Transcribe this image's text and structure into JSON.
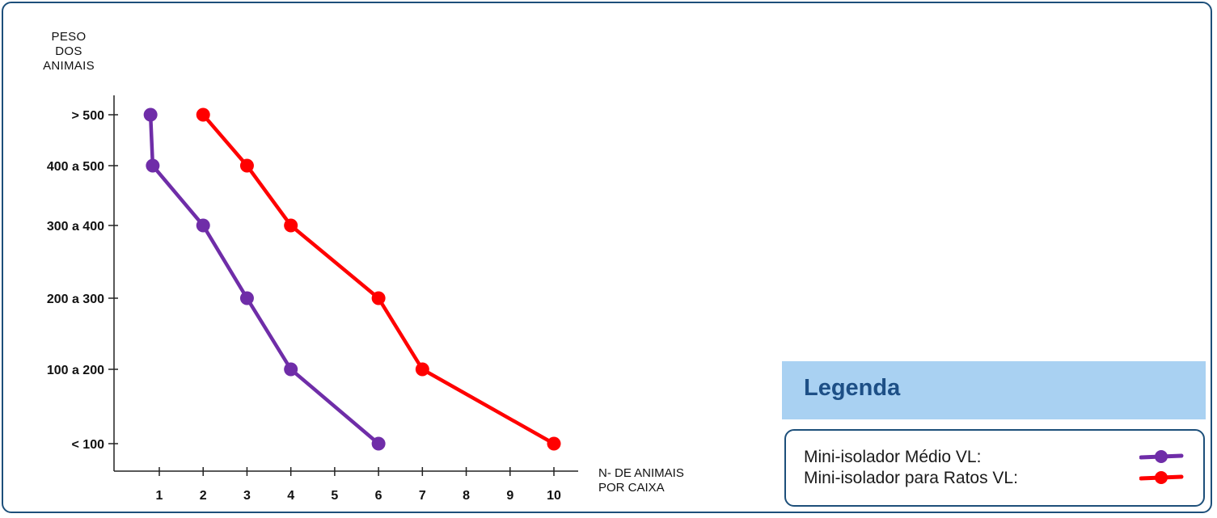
{
  "colors": {
    "frame": "#1d4f7a",
    "legend_header_bg": "#a9d1f2",
    "legend_title": "#1d4f86",
    "axis": "#222222"
  },
  "legend": {
    "title": "Legenda",
    "items": [
      {
        "label": "Mini-isolador Médio VL:",
        "color": "#6f2da8"
      },
      {
        "label": "Mini-isolador para Ratos VL:",
        "color": "#ff0000"
      }
    ]
  },
  "chart_data": {
    "type": "line",
    "ylabel_lines": [
      "PESO",
      "DOS",
      "ANIMAIS"
    ],
    "xlabel_lines": [
      "N- DE ANIMAIS",
      "POR CAIXA"
    ],
    "x_ticks": [
      1,
      2,
      3,
      4,
      5,
      6,
      7,
      8,
      9,
      10
    ],
    "y_ticks": [
      "< 100",
      "100 a 200",
      "200 a 300",
      "300 a 400",
      "400 a 500",
      "> 500"
    ],
    "y_tick_values": [
      0,
      1,
      2,
      3,
      4,
      5
    ],
    "xlim": [
      -0.3,
      11
    ],
    "ylim": [
      -0.3,
      5.6
    ],
    "grid": false,
    "legend_position": "bottom-right",
    "series": [
      {
        "name": "Mini-isolador Médio VL",
        "color": "#6f2da8",
        "points": [
          {
            "x": 0.8,
            "y": 5.0
          },
          {
            "x": 0.85,
            "y": 4.0
          },
          {
            "x": 2.0,
            "y": 3.0
          },
          {
            "x": 3.0,
            "y": 2.0
          },
          {
            "x": 4.0,
            "y": 1.0
          },
          {
            "x": 6.0,
            "y": 0.0
          }
        ]
      },
      {
        "name": "Mini-isolador para Ratos VL",
        "color": "#ff0000",
        "points": [
          {
            "x": 2.0,
            "y": 5.0
          },
          {
            "x": 3.0,
            "y": 4.0
          },
          {
            "x": 4.0,
            "y": 3.0
          },
          {
            "x": 6.0,
            "y": 2.0
          },
          {
            "x": 7.0,
            "y": 1.0
          },
          {
            "x": 10.0,
            "y": 0.0
          }
        ]
      }
    ]
  }
}
